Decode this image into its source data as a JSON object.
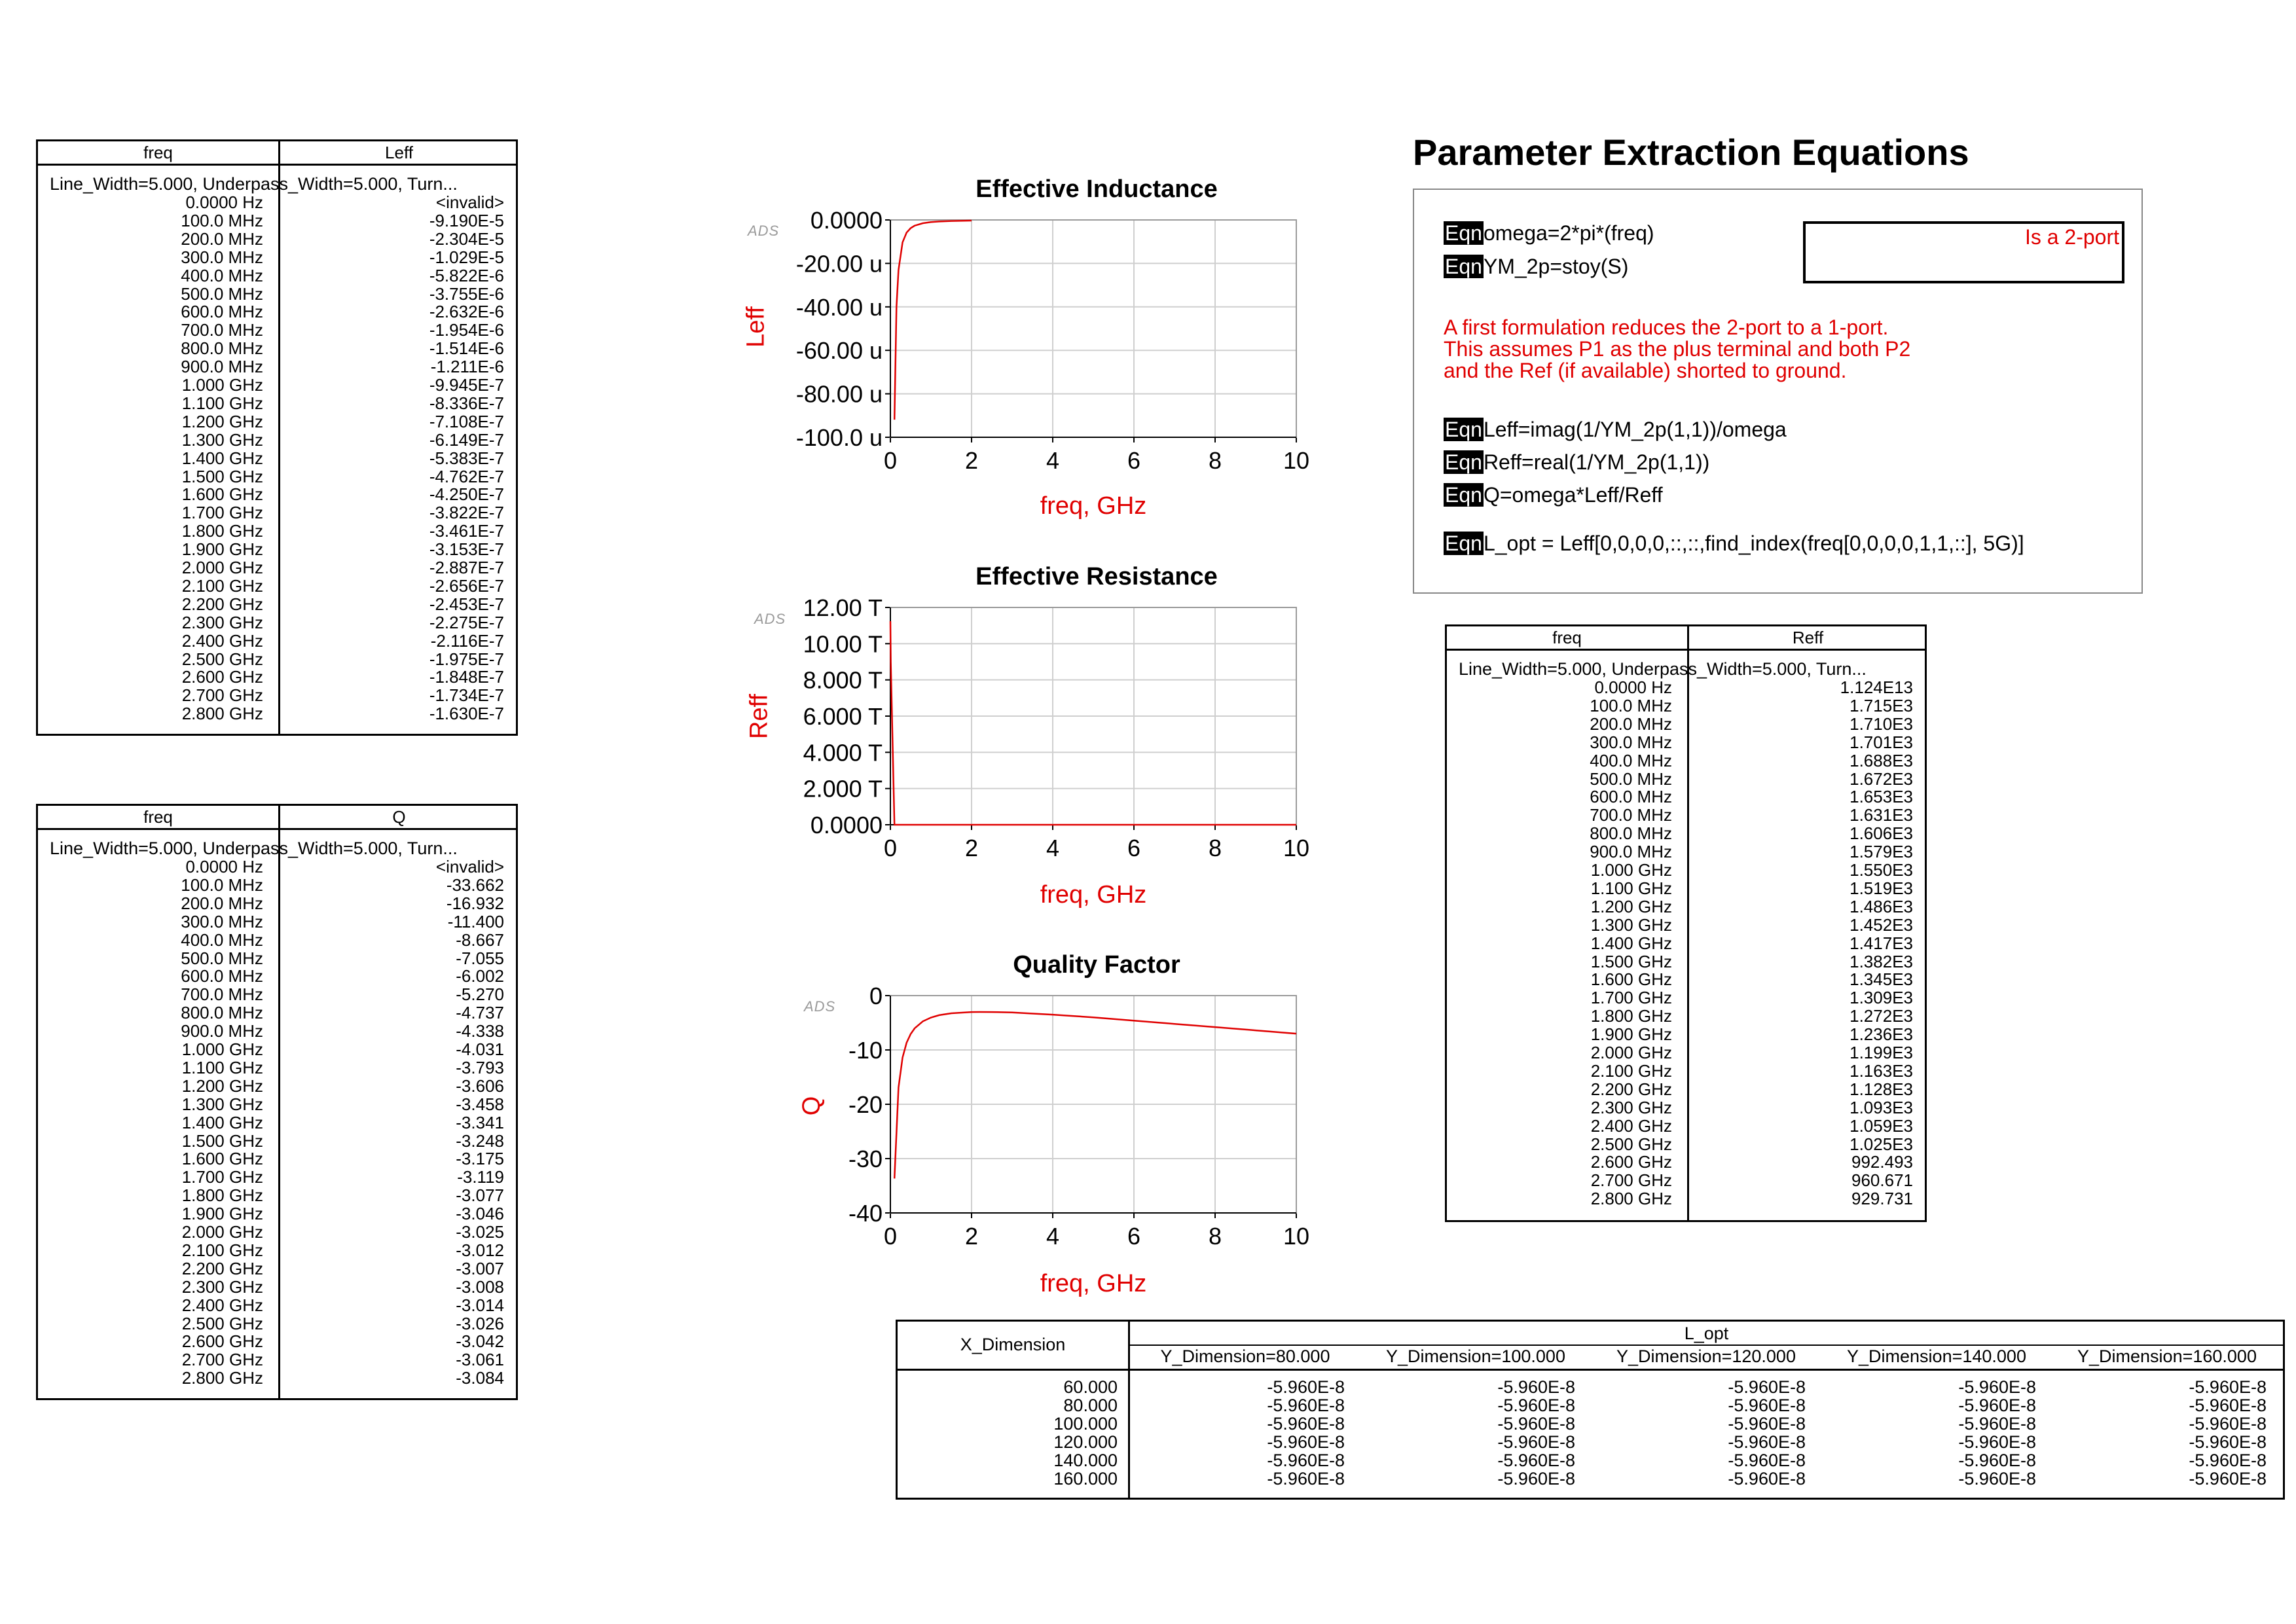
{
  "sweep_label": "Line_Width=5.000, Underpass_Width=5.000, Turn...",
  "freq_values": [
    "0.0000 Hz",
    "100.0 MHz",
    "200.0 MHz",
    "300.0 MHz",
    "400.0 MHz",
    "500.0 MHz",
    "600.0 MHz",
    "700.0 MHz",
    "800.0 MHz",
    "900.0 MHz",
    "1.000 GHz",
    "1.100 GHz",
    "1.200 GHz",
    "1.300 GHz",
    "1.400 GHz",
    "1.500 GHz",
    "1.600 GHz",
    "1.700 GHz",
    "1.800 GHz",
    "1.900 GHz",
    "2.000 GHz",
    "2.100 GHz",
    "2.200 GHz",
    "2.300 GHz",
    "2.400 GHz",
    "2.500 GHz",
    "2.600 GHz",
    "2.700 GHz",
    "2.800 GHz"
  ],
  "leff_table": {
    "col1": "freq",
    "col2": "Leff",
    "values": [
      "<invalid>",
      "-9.190E-5",
      "-2.304E-5",
      "-1.029E-5",
      "-5.822E-6",
      "-3.755E-6",
      "-2.632E-6",
      "-1.954E-6",
      "-1.514E-6",
      "-1.211E-6",
      "-9.945E-7",
      "-8.336E-7",
      "-7.108E-7",
      "-6.149E-7",
      "-5.383E-7",
      "-4.762E-7",
      "-4.250E-7",
      "-3.822E-7",
      "-3.461E-7",
      "-3.153E-7",
      "-2.887E-7",
      "-2.656E-7",
      "-2.453E-7",
      "-2.275E-7",
      "-2.116E-7",
      "-1.975E-7",
      "-1.848E-7",
      "-1.734E-7",
      "-1.630E-7"
    ]
  },
  "q_table": {
    "col1": "freq",
    "col2": "Q",
    "values": [
      "<invalid>",
      "-33.662",
      "-16.932",
      "-11.400",
      "-8.667",
      "-7.055",
      "-6.002",
      "-5.270",
      "-4.737",
      "-4.338",
      "-4.031",
      "-3.793",
      "-3.606",
      "-3.458",
      "-3.341",
      "-3.248",
      "-3.175",
      "-3.119",
      "-3.077",
      "-3.046",
      "-3.025",
      "-3.012",
      "-3.007",
      "-3.008",
      "-3.014",
      "-3.026",
      "-3.042",
      "-3.061",
      "-3.084"
    ]
  },
  "reff_table": {
    "col1": "freq",
    "col2": "Reff",
    "values": [
      "1.124E13",
      "1.715E3",
      "1.710E3",
      "1.701E3",
      "1.688E3",
      "1.672E3",
      "1.653E3",
      "1.631E3",
      "1.606E3",
      "1.579E3",
      "1.550E3",
      "1.519E3",
      "1.486E3",
      "1.452E3",
      "1.417E3",
      "1.382E3",
      "1.345E3",
      "1.309E3",
      "1.272E3",
      "1.236E3",
      "1.199E3",
      "1.163E3",
      "1.128E3",
      "1.093E3",
      "1.059E3",
      "1.025E3",
      "992.493",
      "960.671",
      "929.731"
    ]
  },
  "equations": {
    "title": "Parameter Extraction Equations",
    "tag": "Eqn",
    "eq1": "omega=2*pi*(freq)",
    "eq2": "YM_2p=stoy(S)",
    "eq3": "Leff=imag(1/YM_2p(1,1))/omega",
    "eq4": "Reff=real(1/YM_2p(1,1))",
    "eq5": "Q=omega*Leff/Reff",
    "eq6": "L_opt = Leff[0,0,0,0,::,::,find_index(freq[0,0,0,0,1,1,::], 5G)]",
    "note1": "A first formulation reduces the 2-port to a 1-port.",
    "note2": "This assumes P1 as the plus terminal and both P2",
    "note3": "and the Ref (if available) shorted to ground.",
    "textbox": "Is a 2-port"
  },
  "lopt_table": {
    "row_header": "X_Dimension",
    "title": "L_opt",
    "columns": [
      "Y_Dimension=80.000",
      "Y_Dimension=100.000",
      "Y_Dimension=120.000",
      "Y_Dimension=140.000",
      "Y_Dimension=160.000"
    ],
    "x_values": [
      "60.000",
      "80.000",
      "100.000",
      "120.000",
      "140.000",
      "160.000"
    ],
    "cell_value": "-5.960E-8"
  },
  "ads_mark": "ADS",
  "accent_color": "#e00000",
  "chart_data": [
    {
      "type": "line",
      "title": "Effective Inductance",
      "xlabel": "freq, GHz",
      "ylabel": "Leff",
      "xlim": [
        0,
        10
      ],
      "ylim": [
        -100,
        0
      ],
      "x_ticks": [
        "0",
        "2",
        "4",
        "6",
        "8",
        "10"
      ],
      "y_ticks": [
        "0.0000",
        "-20.00 u",
        "-40.00 u",
        "-60.00 u",
        "-80.00 u",
        "-100.0 u"
      ],
      "grid": true,
      "series": [
        {
          "color": "#e00000",
          "x": [
            0.1,
            0.15,
            0.2,
            0.3,
            0.4,
            0.5,
            0.6,
            0.8,
            1.0,
            1.2,
            1.5,
            2.0
          ],
          "y": [
            -91.9,
            -40,
            -23.04,
            -10.29,
            -5.822,
            -3.755,
            -2.632,
            -1.514,
            -0.9945,
            -0.7108,
            -0.4762,
            -0.2887
          ]
        }
      ]
    },
    {
      "type": "line",
      "title": "Effective Resistance",
      "xlabel": "freq, GHz",
      "ylabel": "Reff",
      "xlim": [
        0,
        10
      ],
      "ylim": [
        0,
        12
      ],
      "x_ticks": [
        "0",
        "2",
        "4",
        "6",
        "8",
        "10"
      ],
      "y_ticks": [
        "12.00 T",
        "10.00 T",
        "8.000 T",
        "6.000 T",
        "4.000 T",
        "2.000 T",
        "0.0000"
      ],
      "grid": true,
      "series": [
        {
          "color": "#e00000",
          "x": [
            0.0,
            0.01,
            0.1,
            10
          ],
          "y": [
            11.24,
            9.0,
            0.0,
            0.0
          ]
        }
      ]
    },
    {
      "type": "line",
      "title": "Quality Factor",
      "xlabel": "freq, GHz",
      "ylabel": "Q",
      "xlim": [
        0,
        10
      ],
      "ylim": [
        -40,
        0
      ],
      "x_ticks": [
        "0",
        "2",
        "4",
        "6",
        "8",
        "10"
      ],
      "y_ticks": [
        "0",
        "-10",
        "-20",
        "-30",
        "-40"
      ],
      "grid": true,
      "series": [
        {
          "color": "#e00000",
          "x": [
            0.1,
            0.2,
            0.3,
            0.4,
            0.5,
            0.6,
            0.8,
            1.0,
            1.2,
            1.5,
            2.0,
            2.2,
            2.5,
            3,
            4,
            5,
            6,
            7,
            8,
            9,
            10
          ],
          "y": [
            -33.662,
            -16.932,
            -11.4,
            -8.667,
            -7.055,
            -6.002,
            -4.737,
            -4.031,
            -3.606,
            -3.248,
            -3.025,
            -3.007,
            -3.026,
            -3.1,
            -3.5,
            -4.0,
            -4.6,
            -5.2,
            -5.8,
            -6.4,
            -7.0
          ]
        }
      ]
    }
  ]
}
